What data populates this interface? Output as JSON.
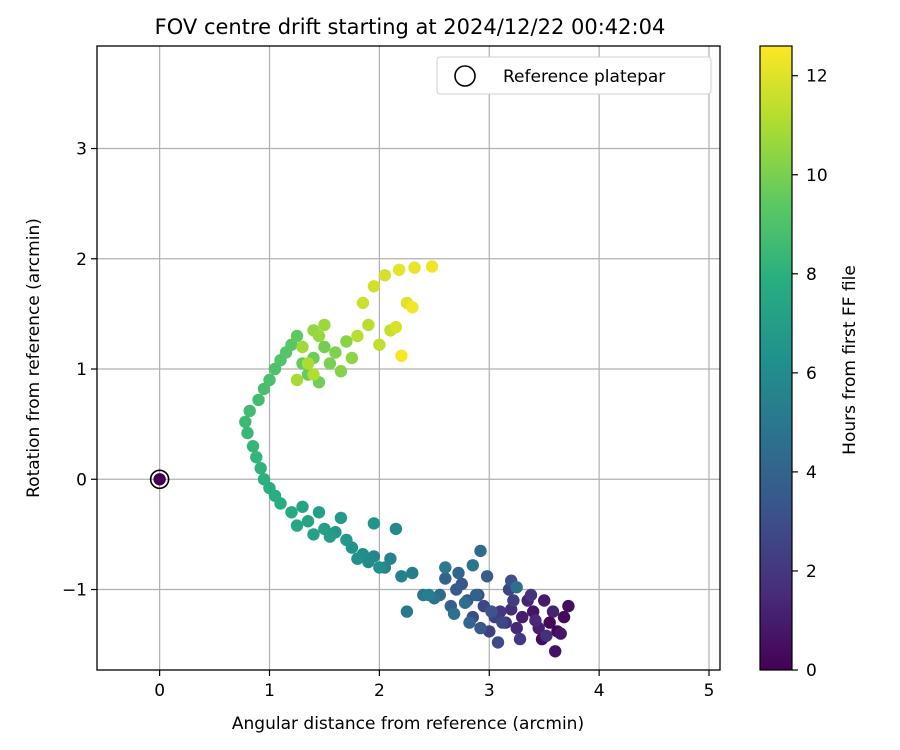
{
  "chart_data": {
    "type": "scatter",
    "title": "FOV centre drift starting at 2024/12/22 00:42:04",
    "xlabel": "Angular distance from reference (arcmin)",
    "ylabel": "Rotation from reference (arcmin)",
    "xlim": [
      -0.57,
      5.1
    ],
    "ylim": [
      -1.73,
      3.93
    ],
    "xticks": [
      0,
      1,
      2,
      3,
      4,
      5
    ],
    "yticks": [
      -1,
      0,
      1,
      2,
      3
    ],
    "xtick_labels": [
      "0",
      "1",
      "2",
      "3",
      "4",
      "5"
    ],
    "ytick_labels": [
      "−1",
      "0",
      "1",
      "2",
      "3"
    ],
    "grid": true,
    "legend": {
      "placement": "top-right",
      "label": "Reference platepar"
    },
    "colorbar": {
      "label": "Hours from first FF file",
      "range": [
        0,
        12.6
      ],
      "ticks": [
        0,
        2,
        4,
        6,
        8,
        10,
        12
      ],
      "tick_labels": [
        "0",
        "2",
        "4",
        "6",
        "8",
        "10",
        "12"
      ],
      "colormap": "viridis"
    },
    "reference_point": {
      "x": 0,
      "y": 0,
      "hours": 0
    },
    "points_hours_x_y": [
      [
        0.1,
        3.62,
        -1.38
      ],
      [
        0.2,
        3.55,
        -1.3
      ],
      [
        0.3,
        3.68,
        -1.25
      ],
      [
        0.4,
        3.48,
        -1.45
      ],
      [
        0.5,
        3.72,
        -1.15
      ],
      [
        0.6,
        3.6,
        -1.56
      ],
      [
        0.7,
        3.4,
        -1.2
      ],
      [
        0.8,
        3.65,
        -1.4
      ],
      [
        0.9,
        3.5,
        -1.1
      ],
      [
        1.0,
        3.3,
        -1.25
      ],
      [
        1.1,
        3.45,
        -1.35
      ],
      [
        1.2,
        3.58,
        -1.2
      ],
      [
        1.3,
        3.35,
        -1.1
      ],
      [
        1.4,
        3.25,
        -1.35
      ],
      [
        1.5,
        3.42,
        -1.28
      ],
      [
        1.6,
        3.2,
        -1.18
      ],
      [
        1.7,
        3.52,
        -1.42
      ],
      [
        1.8,
        3.15,
        -1.3
      ],
      [
        1.9,
        3.38,
        -1.05
      ],
      [
        2.0,
        3.1,
        -1.2
      ],
      [
        2.1,
        3.28,
        -1.45
      ],
      [
        2.2,
        3.05,
        -1.25
      ],
      [
        2.3,
        3.22,
        -1.1
      ],
      [
        2.4,
        3.0,
        -1.38
      ],
      [
        2.5,
        3.18,
        -1.0
      ],
      [
        2.6,
        2.95,
        -1.15
      ],
      [
        2.7,
        3.12,
        -1.3
      ],
      [
        2.8,
        2.9,
        -1.05
      ],
      [
        2.9,
        3.08,
        -1.48
      ],
      [
        3.0,
        2.85,
        -1.25
      ],
      [
        3.1,
        3.2,
        -0.92
      ],
      [
        3.2,
        2.8,
        -1.1
      ],
      [
        3.3,
        3.02,
        -1.2
      ],
      [
        3.4,
        2.75,
        -0.95
      ],
      [
        3.5,
        2.92,
        -1.35
      ],
      [
        3.6,
        2.7,
        -1.0
      ],
      [
        3.7,
        2.98,
        -0.88
      ],
      [
        3.8,
        2.65,
        -1.15
      ],
      [
        3.9,
        2.88,
        -1.05
      ],
      [
        4.0,
        2.6,
        -0.9
      ],
      [
        4.1,
        2.82,
        -1.3
      ],
      [
        4.2,
        2.72,
        -0.85
      ],
      [
        4.3,
        2.55,
        -1.05
      ],
      [
        4.4,
        2.92,
        -0.65
      ],
      [
        4.5,
        2.78,
        -1.12
      ],
      [
        4.6,
        3.25,
        -0.98
      ],
      [
        4.7,
        2.68,
        -1.22
      ],
      [
        4.8,
        2.5,
        -1.08
      ],
      [
        4.9,
        2.85,
        -0.78
      ],
      [
        5.0,
        2.4,
        -1.05
      ],
      [
        5.1,
        2.25,
        -1.2
      ],
      [
        5.2,
        2.6,
        -0.8
      ],
      [
        5.3,
        2.3,
        -0.85
      ],
      [
        5.4,
        2.45,
        -1.05
      ],
      [
        5.5,
        2.2,
        -0.88
      ],
      [
        5.6,
        2.1,
        -0.72
      ],
      [
        5.7,
        2.05,
        -0.8
      ],
      [
        5.8,
        1.95,
        -0.7
      ],
      [
        5.9,
        2.15,
        -0.45
      ],
      [
        6.0,
        1.9,
        -0.75
      ],
      [
        6.1,
        1.85,
        -0.68
      ],
      [
        6.2,
        2.0,
        -0.8
      ],
      [
        6.3,
        1.8,
        -0.72
      ],
      [
        6.4,
        1.75,
        -0.62
      ],
      [
        6.5,
        1.95,
        -0.4
      ],
      [
        6.6,
        1.7,
        -0.55
      ],
      [
        6.7,
        1.6,
        -0.48
      ],
      [
        6.8,
        1.65,
        -0.35
      ],
      [
        6.9,
        1.55,
        -0.52
      ],
      [
        7.0,
        1.5,
        -0.45
      ],
      [
        7.1,
        1.45,
        -0.3
      ],
      [
        7.2,
        1.4,
        -0.5
      ],
      [
        7.3,
        1.35,
        -0.38
      ],
      [
        7.4,
        1.3,
        -0.25
      ],
      [
        7.5,
        1.25,
        -0.42
      ],
      [
        7.6,
        1.2,
        -0.3
      ],
      [
        7.7,
        1.1,
        -0.22
      ],
      [
        7.8,
        1.05,
        -0.15
      ],
      [
        7.9,
        1.0,
        -0.08
      ],
      [
        8.0,
        0.95,
        0.0
      ],
      [
        8.1,
        0.92,
        0.1
      ],
      [
        8.2,
        0.88,
        0.2
      ],
      [
        8.3,
        0.85,
        0.3
      ],
      [
        8.4,
        0.8,
        0.42
      ],
      [
        8.5,
        0.78,
        0.52
      ],
      [
        8.6,
        0.82,
        0.62
      ],
      [
        8.7,
        0.9,
        0.72
      ],
      [
        8.8,
        0.95,
        0.82
      ],
      [
        8.9,
        1.0,
        0.9
      ],
      [
        9.0,
        1.05,
        1.0
      ],
      [
        9.1,
        1.1,
        1.08
      ],
      [
        9.2,
        1.15,
        1.15
      ],
      [
        9.3,
        1.2,
        1.22
      ],
      [
        9.4,
        1.25,
        1.3
      ],
      [
        9.5,
        1.3,
        1.05
      ],
      [
        9.6,
        1.35,
        0.95
      ],
      [
        9.7,
        1.4,
        1.1
      ],
      [
        9.8,
        1.45,
        0.88
      ],
      [
        9.9,
        1.5,
        1.2
      ],
      [
        10.0,
        1.55,
        1.05
      ],
      [
        10.1,
        1.6,
        1.15
      ],
      [
        10.2,
        1.65,
        0.98
      ],
      [
        10.3,
        1.7,
        1.25
      ],
      [
        10.4,
        1.75,
        1.1
      ],
      [
        10.5,
        1.4,
        1.35
      ],
      [
        10.6,
        1.45,
        1.3
      ],
      [
        10.7,
        1.5,
        1.4
      ],
      [
        10.8,
        1.3,
        1.2
      ],
      [
        10.9,
        1.25,
        0.9
      ],
      [
        11.0,
        1.35,
        1.05
      ],
      [
        11.1,
        1.4,
        0.95
      ],
      [
        11.2,
        1.8,
        1.3
      ],
      [
        11.3,
        1.9,
        1.4
      ],
      [
        11.4,
        2.0,
        1.22
      ],
      [
        11.5,
        2.1,
        1.35
      ],
      [
        11.6,
        1.85,
        1.6
      ],
      [
        11.7,
        1.95,
        1.75
      ],
      [
        11.8,
        2.05,
        1.85
      ],
      [
        11.9,
        2.15,
        1.38
      ],
      [
        12.0,
        2.25,
        1.6
      ],
      [
        12.1,
        2.18,
        1.9
      ],
      [
        12.2,
        2.32,
        1.92
      ],
      [
        12.3,
        2.48,
        1.93
      ],
      [
        12.4,
        2.3,
        1.56
      ],
      [
        12.5,
        2.2,
        1.12
      ]
    ]
  }
}
